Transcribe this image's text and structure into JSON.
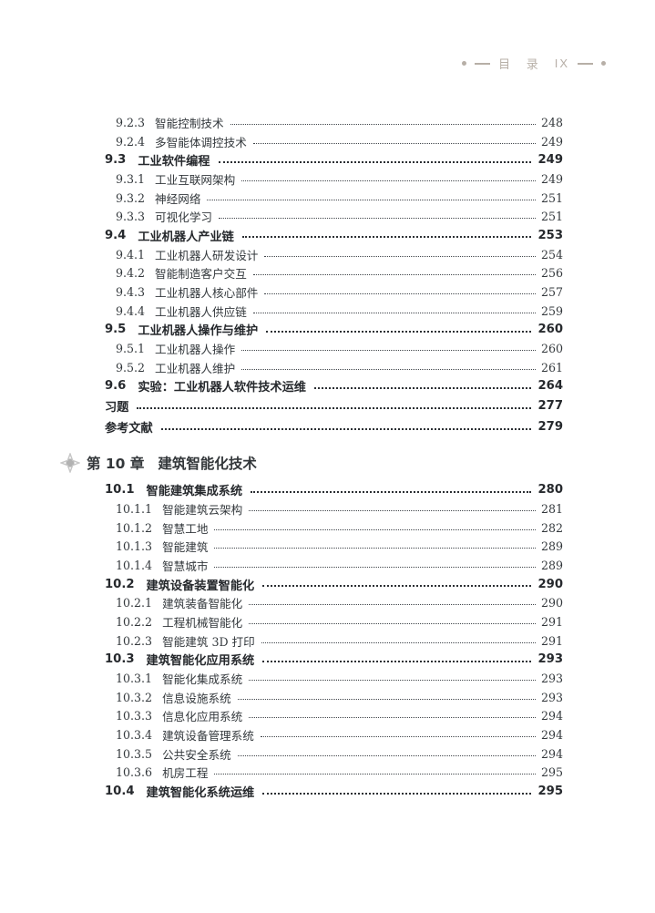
{
  "header": {
    "title": "目 录",
    "page_roman": "IX"
  },
  "colors": {
    "header_text": "#b7afa7",
    "body_text": "#33383c",
    "bold_text": "#26292d",
    "ornament_outline": "#c7c7c7",
    "ornament_center": "#b2b2b2"
  },
  "icons": {
    "chapter_ornament": "four-point-star-icon",
    "header_left": "dot-dash-icon",
    "header_right": "dash-dot-icon"
  },
  "toc": {
    "entries": [
      {
        "type": "sub",
        "num": "9.2.3",
        "title": "智能控制技术",
        "page": "248"
      },
      {
        "type": "sub",
        "num": "9.2.4",
        "title": "多智能体调控技术",
        "page": "249"
      },
      {
        "type": "sec",
        "num": "9.3",
        "title": "工业软件编程",
        "page": "249"
      },
      {
        "type": "sub",
        "num": "9.3.1",
        "title": "工业互联网架构",
        "page": "249"
      },
      {
        "type": "sub",
        "num": "9.3.2",
        "title": "神经网络",
        "page": "251"
      },
      {
        "type": "sub",
        "num": "9.3.3",
        "title": "可视化学习",
        "page": "251"
      },
      {
        "type": "sec",
        "num": "9.4",
        "title": "工业机器人产业链",
        "page": "253"
      },
      {
        "type": "sub",
        "num": "9.4.1",
        "title": "工业机器人研发设计",
        "page": "254"
      },
      {
        "type": "sub",
        "num": "9.4.2",
        "title": "智能制造客户交互",
        "page": "256"
      },
      {
        "type": "sub",
        "num": "9.4.3",
        "title": "工业机器人核心部件",
        "page": "257"
      },
      {
        "type": "sub",
        "num": "9.4.4",
        "title": "工业机器人供应链",
        "page": "259"
      },
      {
        "type": "sec",
        "num": "9.5",
        "title": "工业机器人操作与维护",
        "page": "260"
      },
      {
        "type": "sub",
        "num": "9.5.1",
        "title": "工业机器人操作",
        "page": "260"
      },
      {
        "type": "sub",
        "num": "9.5.2",
        "title": "工业机器人维护",
        "page": "261"
      },
      {
        "type": "sec",
        "num": "9.6",
        "title": "实验：工业机器人软件技术运维",
        "page": "264"
      },
      {
        "type": "back",
        "num": "",
        "title": "习题",
        "page": "277"
      },
      {
        "type": "back",
        "num": "",
        "title": "参考文献",
        "page": "279"
      },
      {
        "type": "chapter",
        "num": "第 10 章",
        "title": "建筑智能化技术",
        "page": ""
      },
      {
        "type": "sec",
        "num": "10.1",
        "title": "智能建筑集成系统",
        "page": "280"
      },
      {
        "type": "sub",
        "num": "10.1.1",
        "title": "智能建筑云架构",
        "page": "281"
      },
      {
        "type": "sub",
        "num": "10.1.2",
        "title": "智慧工地",
        "page": "282"
      },
      {
        "type": "sub",
        "num": "10.1.3",
        "title": "智能建筑",
        "page": "289"
      },
      {
        "type": "sub",
        "num": "10.1.4",
        "title": "智慧城市",
        "page": "289"
      },
      {
        "type": "sec",
        "num": "10.2",
        "title": "建筑设备装置智能化",
        "page": "290"
      },
      {
        "type": "sub",
        "num": "10.2.1",
        "title": "建筑装备智能化",
        "page": "290"
      },
      {
        "type": "sub",
        "num": "10.2.2",
        "title": "工程机械智能化",
        "page": "291"
      },
      {
        "type": "sub",
        "num": "10.2.3",
        "title": "智能建筑 3D 打印",
        "page": "291"
      },
      {
        "type": "sec",
        "num": "10.3",
        "title": "建筑智能化应用系统",
        "page": "293"
      },
      {
        "type": "sub",
        "num": "10.3.1",
        "title": "智能化集成系统",
        "page": "293"
      },
      {
        "type": "sub",
        "num": "10.3.2",
        "title": "信息设施系统",
        "page": "293"
      },
      {
        "type": "sub",
        "num": "10.3.3",
        "title": "信息化应用系统",
        "page": "294"
      },
      {
        "type": "sub",
        "num": "10.3.4",
        "title": "建筑设备管理系统",
        "page": "294"
      },
      {
        "type": "sub",
        "num": "10.3.5",
        "title": "公共安全系统",
        "page": "294"
      },
      {
        "type": "sub",
        "num": "10.3.6",
        "title": "机房工程",
        "page": "295"
      },
      {
        "type": "sec",
        "num": "10.4",
        "title": "建筑智能化系统运维",
        "page": "295"
      }
    ]
  }
}
